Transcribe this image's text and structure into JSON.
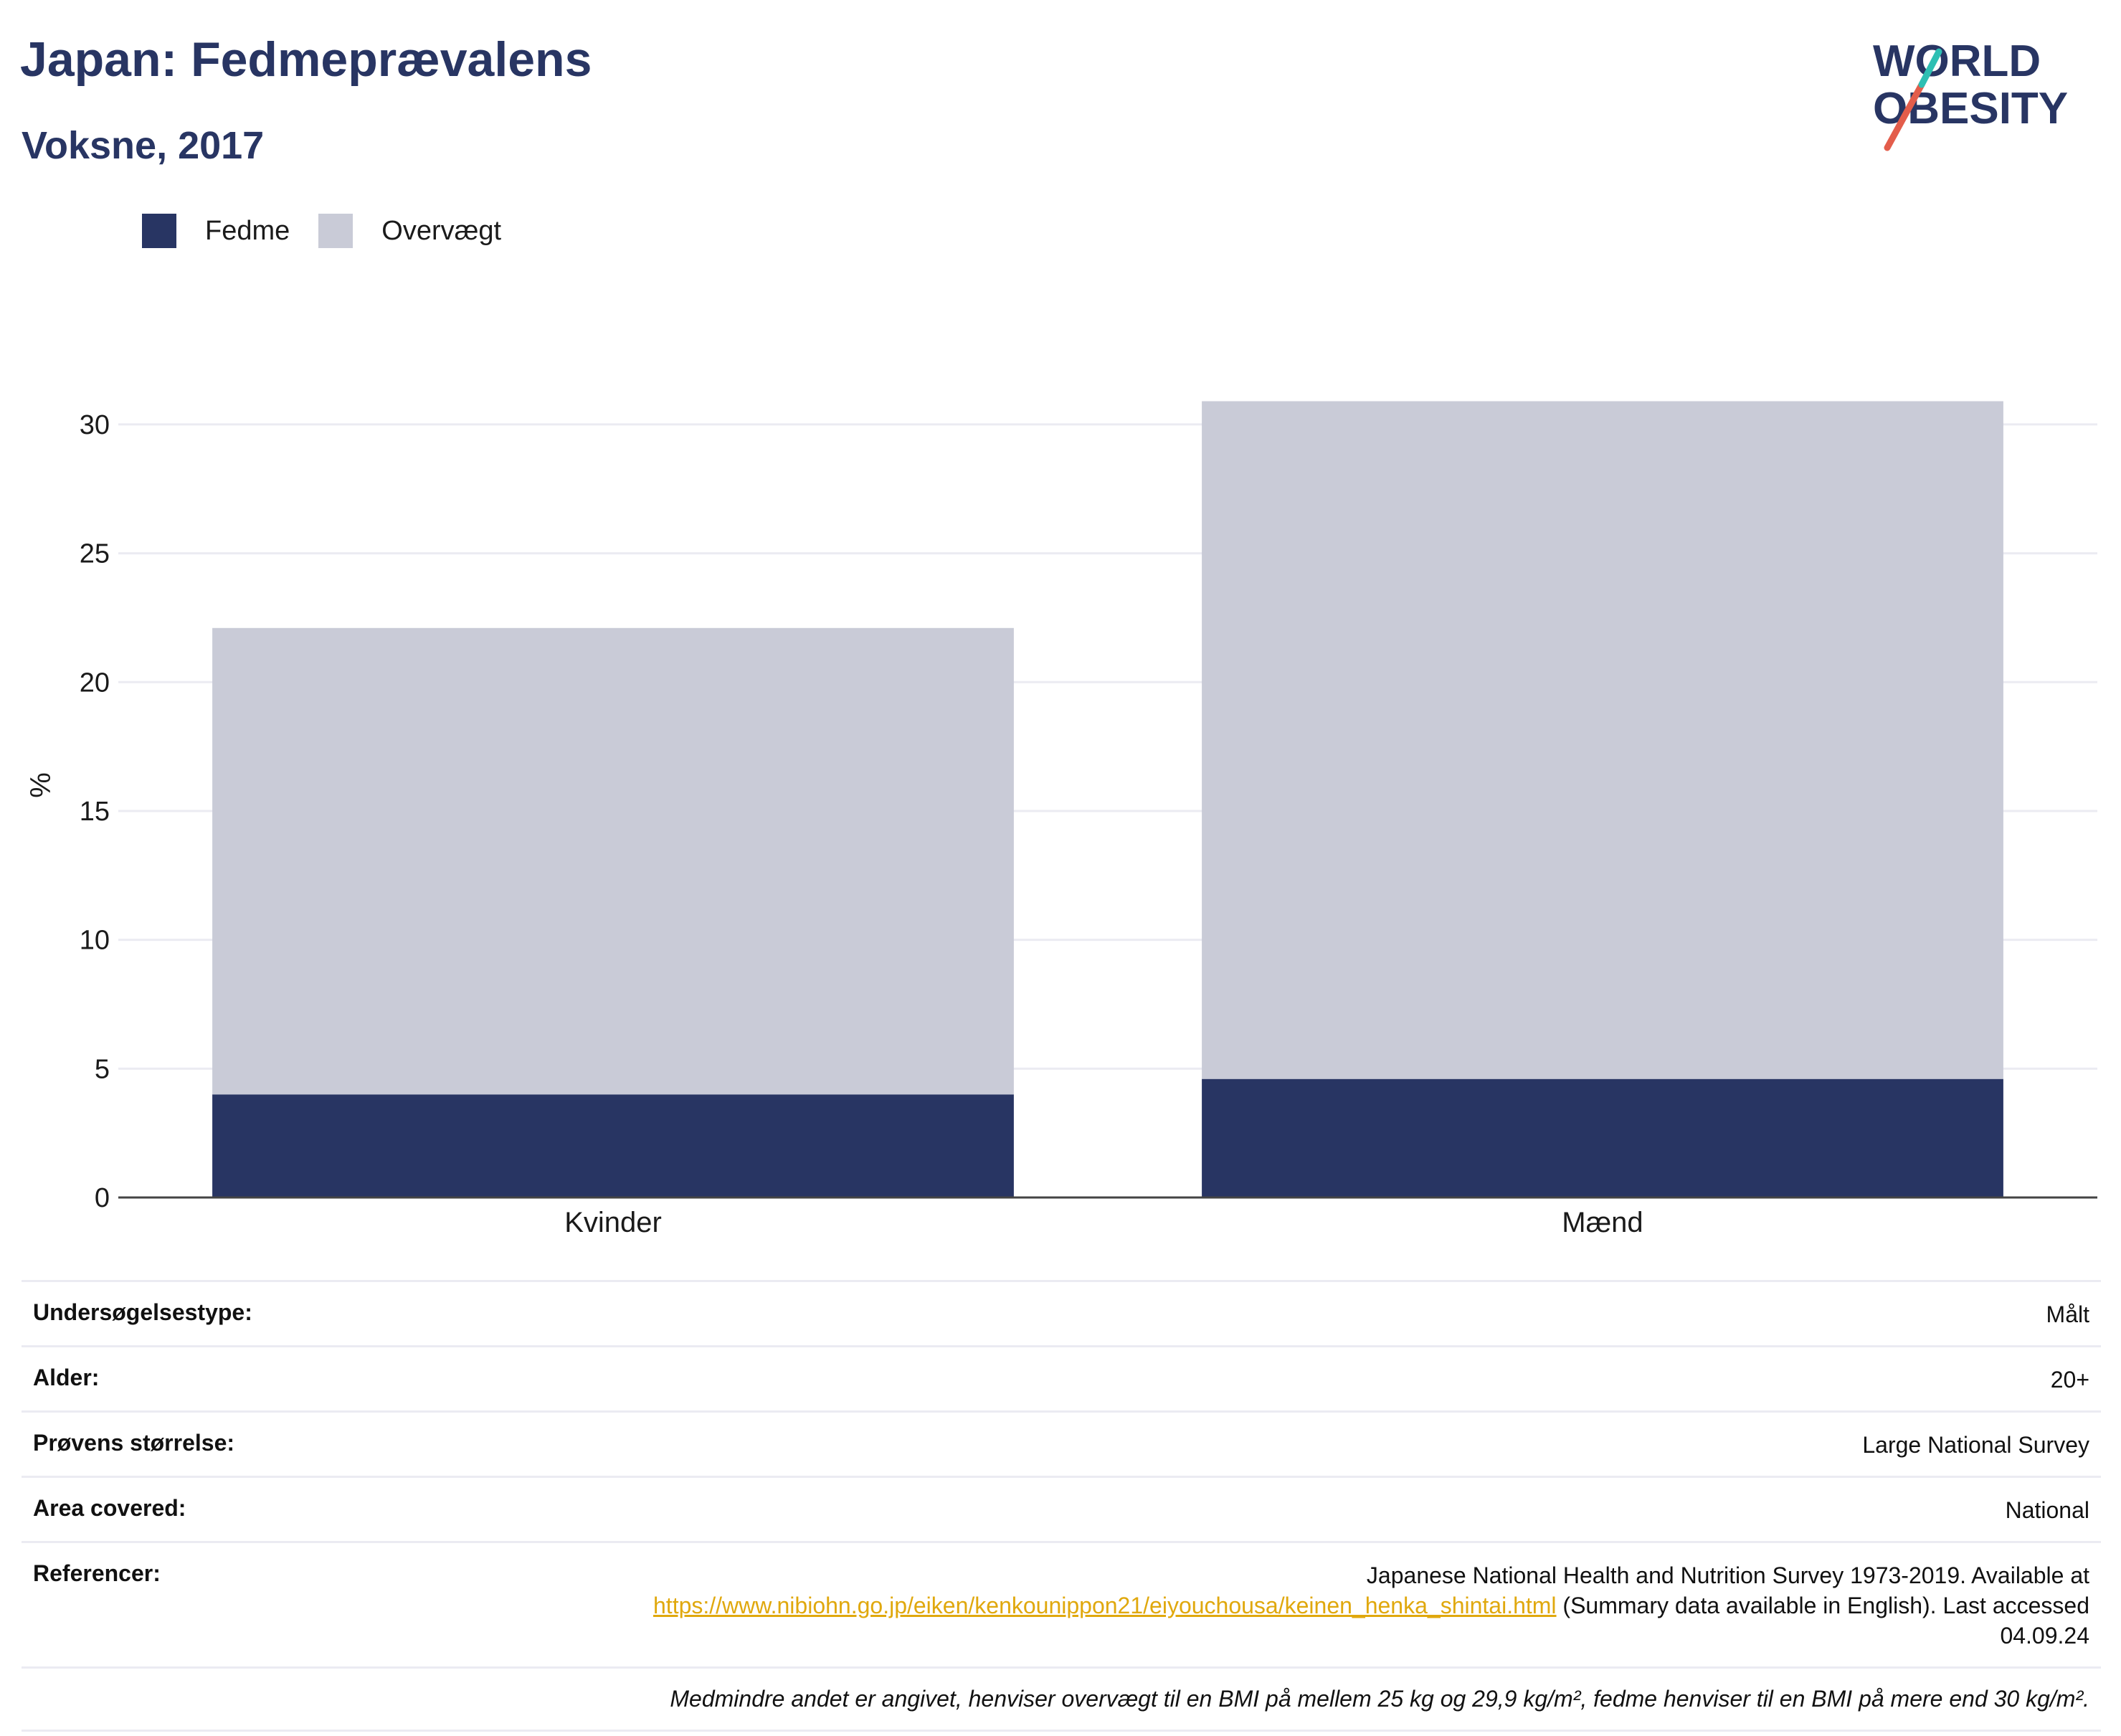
{
  "header": {
    "title": "Japan: Fedmeprævalens",
    "subtitle": "Voksne, 2017"
  },
  "logo": {
    "line1": "WORLD",
    "line2": "OBESITY",
    "accent_colors": [
      "#e35d4b",
      "#2ebfb3"
    ],
    "text_color": "#283563"
  },
  "legend": [
    {
      "label": "Fedme",
      "color": "#283563"
    },
    {
      "label": "Overvægt",
      "color": "#c9cbd7"
    }
  ],
  "chart_data": {
    "type": "bar",
    "stacked": true,
    "categories": [
      "Kvinder",
      "Mænd"
    ],
    "series": [
      {
        "name": "Fedme",
        "color": "#283563",
        "values": [
          4.0,
          4.6
        ]
      },
      {
        "name": "Overvægt",
        "color": "#c9cbd7",
        "values": [
          18.1,
          26.3
        ]
      }
    ],
    "ylabel": "%",
    "ylim": [
      0,
      32
    ],
    "yticks": [
      0,
      5,
      10,
      15,
      20,
      25,
      30
    ],
    "grid": true
  },
  "info": {
    "rows": [
      {
        "label": "Undersøgelsestype:",
        "value": "Målt"
      },
      {
        "label": "Alder:",
        "value": "20+"
      },
      {
        "label": "Prøvens størrelse:",
        "value": "Large National Survey"
      },
      {
        "label": "Area covered:",
        "value": "National"
      }
    ],
    "reference": {
      "label": "Referencer:",
      "text_before": "Japanese National Health and Nutrition Survey 1973-2019. Available at",
      "link": "https://www.nibiohn.go.jp/eiken/kenkounippon21/eiyouchousa/keinen_henka_shintai.html",
      "text_after": "(Summary data available in English). Last accessed 04.09.24"
    },
    "note": "Medmindre andet er angivet, henviser overvægt til en BMI på mellem 25 kg og 29,9 kg/m², fedme henviser til en BMI på mere end 30 kg/m²."
  }
}
